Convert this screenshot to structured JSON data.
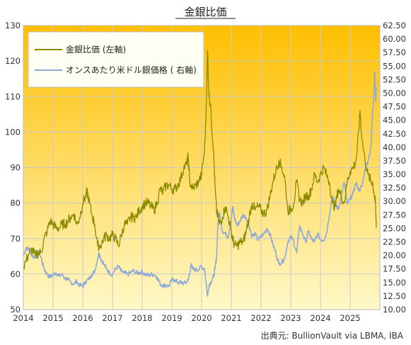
{
  "chart_data": {
    "type": "line",
    "title": "金銀比価",
    "source": "出典元: BullionVault via LBMA, IBA",
    "background_gradient": [
      "#ffbf00",
      "#fff8c8"
    ],
    "grid": true,
    "legend_position": "top-left",
    "x_range": [
      2014.0,
      2026.0
    ],
    "x_ticks": [
      "2014",
      "2015",
      "2016",
      "2017",
      "2018",
      "2019",
      "2020",
      "2021",
      "2022",
      "2023",
      "2024",
      "2025"
    ],
    "y_left": {
      "min": 50,
      "max": 130,
      "ticks": [
        "50",
        "60",
        "70",
        "80",
        "90",
        "100",
        "110",
        "120",
        "130"
      ]
    },
    "y_right": {
      "min": 10.0,
      "max": 62.5,
      "ticks": [
        "10.00",
        "12.50",
        "15.00",
        "17.50",
        "20.00",
        "22.50",
        "25.00",
        "27.50",
        "30.00",
        "32.50",
        "35.00",
        "37.50",
        "40.00",
        "42.50",
        "45.00",
        "47.50",
        "50.00",
        "52.50",
        "55.00",
        "57.50",
        "60.00",
        "62.50"
      ]
    },
    "series": [
      {
        "name": "金銀比価 (左軸)",
        "axis": "left",
        "color": "#8b8b00",
        "points": [
          [
            2014.0,
            62
          ],
          [
            2014.1,
            64
          ],
          [
            2014.2,
            66
          ],
          [
            2014.3,
            67
          ],
          [
            2014.4,
            65
          ],
          [
            2014.5,
            66
          ],
          [
            2014.6,
            66
          ],
          [
            2014.7,
            70
          ],
          [
            2014.8,
            72
          ],
          [
            2014.9,
            75
          ],
          [
            2015.0,
            74
          ],
          [
            2015.1,
            73
          ],
          [
            2015.2,
            73
          ],
          [
            2015.3,
            74
          ],
          [
            2015.4,
            74
          ],
          [
            2015.5,
            75
          ],
          [
            2015.6,
            76
          ],
          [
            2015.7,
            77
          ],
          [
            2015.8,
            74
          ],
          [
            2015.9,
            76
          ],
          [
            2016.0,
            80
          ],
          [
            2016.1,
            82
          ],
          [
            2016.15,
            83
          ],
          [
            2016.2,
            81
          ],
          [
            2016.3,
            77
          ],
          [
            2016.4,
            74
          ],
          [
            2016.5,
            68
          ],
          [
            2016.6,
            68
          ],
          [
            2016.7,
            70
          ],
          [
            2016.8,
            71
          ],
          [
            2016.9,
            70
          ],
          [
            2017.0,
            71
          ],
          [
            2017.1,
            70
          ],
          [
            2017.2,
            68
          ],
          [
            2017.3,
            71
          ],
          [
            2017.4,
            74
          ],
          [
            2017.5,
            74
          ],
          [
            2017.6,
            76
          ],
          [
            2017.7,
            76
          ],
          [
            2017.8,
            76
          ],
          [
            2017.9,
            78
          ],
          [
            2018.0,
            79
          ],
          [
            2018.1,
            80
          ],
          [
            2018.2,
            80
          ],
          [
            2018.3,
            79
          ],
          [
            2018.4,
            78
          ],
          [
            2018.5,
            80
          ],
          [
            2018.6,
            84
          ],
          [
            2018.7,
            83
          ],
          [
            2018.8,
            85
          ],
          [
            2018.9,
            85
          ],
          [
            2019.0,
            84
          ],
          [
            2019.1,
            84
          ],
          [
            2019.2,
            85
          ],
          [
            2019.3,
            87
          ],
          [
            2019.4,
            90
          ],
          [
            2019.5,
            91
          ],
          [
            2019.55,
            93
          ],
          [
            2019.6,
            86
          ],
          [
            2019.7,
            84
          ],
          [
            2019.8,
            85
          ],
          [
            2019.9,
            86
          ],
          [
            2020.0,
            88
          ],
          [
            2020.1,
            95
          ],
          [
            2020.15,
            105
          ],
          [
            2020.2,
            123
          ],
          [
            2020.25,
            110
          ],
          [
            2020.3,
            108
          ],
          [
            2020.35,
            100
          ],
          [
            2020.4,
            95
          ],
          [
            2020.45,
            85
          ],
          [
            2020.5,
            78
          ],
          [
            2020.55,
            76
          ],
          [
            2020.6,
            74
          ],
          [
            2020.7,
            76
          ],
          [
            2020.8,
            79
          ],
          [
            2020.9,
            76
          ],
          [
            2021.0,
            72
          ],
          [
            2021.05,
            70
          ],
          [
            2021.1,
            68
          ],
          [
            2021.2,
            68
          ],
          [
            2021.3,
            69
          ],
          [
            2021.4,
            69
          ],
          [
            2021.5,
            72
          ],
          [
            2021.6,
            76
          ],
          [
            2021.7,
            80
          ],
          [
            2021.8,
            78
          ],
          [
            2021.9,
            79
          ],
          [
            2022.0,
            78
          ],
          [
            2022.1,
            77
          ],
          [
            2022.2,
            78
          ],
          [
            2022.3,
            82
          ],
          [
            2022.4,
            86
          ],
          [
            2022.5,
            89
          ],
          [
            2022.6,
            92
          ],
          [
            2022.7,
            90
          ],
          [
            2022.8,
            87
          ],
          [
            2022.9,
            78
          ],
          [
            2023.0,
            78
          ],
          [
            2023.1,
            80
          ],
          [
            2023.2,
            86
          ],
          [
            2023.3,
            81
          ],
          [
            2023.4,
            80
          ],
          [
            2023.5,
            82
          ],
          [
            2023.6,
            82
          ],
          [
            2023.7,
            84
          ],
          [
            2023.8,
            88
          ],
          [
            2023.9,
            86
          ],
          [
            2024.0,
            88
          ],
          [
            2024.1,
            90
          ],
          [
            2024.2,
            88
          ],
          [
            2024.3,
            86
          ],
          [
            2024.4,
            80
          ],
          [
            2024.5,
            79
          ],
          [
            2024.6,
            84
          ],
          [
            2024.7,
            82
          ],
          [
            2024.8,
            80
          ],
          [
            2024.9,
            86
          ],
          [
            2025.0,
            89
          ],
          [
            2025.1,
            90
          ],
          [
            2025.2,
            92
          ],
          [
            2025.3,
            101
          ],
          [
            2025.33,
            106
          ],
          [
            2025.4,
            98
          ],
          [
            2025.5,
            92
          ],
          [
            2025.6,
            88
          ],
          [
            2025.7,
            86
          ],
          [
            2025.75,
            86
          ],
          [
            2025.8,
            83
          ],
          [
            2025.85,
            80
          ],
          [
            2025.88,
            73
          ]
        ]
      },
      {
        "name": "オンスあたり米ドル銀価格 ( 右軸)",
        "axis": "right",
        "color": "#8fa9d8",
        "points": [
          [
            2014.0,
            20.0
          ],
          [
            2014.1,
            21.5
          ],
          [
            2014.2,
            21.0
          ],
          [
            2014.3,
            20.0
          ],
          [
            2014.4,
            19.5
          ],
          [
            2014.5,
            21.0
          ],
          [
            2014.6,
            19.5
          ],
          [
            2014.7,
            17.5
          ],
          [
            2014.8,
            16.5
          ],
          [
            2014.9,
            16.0
          ],
          [
            2015.0,
            16.5
          ],
          [
            2015.1,
            16.8
          ],
          [
            2015.2,
            16.2
          ],
          [
            2015.3,
            16.5
          ],
          [
            2015.4,
            15.8
          ],
          [
            2015.5,
            15.5
          ],
          [
            2015.6,
            15.0
          ],
          [
            2015.7,
            14.8
          ],
          [
            2015.8,
            15.2
          ],
          [
            2015.9,
            14.5
          ],
          [
            2016.0,
            14.3
          ],
          [
            2016.1,
            15.2
          ],
          [
            2016.2,
            15.6
          ],
          [
            2016.3,
            16.5
          ],
          [
            2016.4,
            17.0
          ],
          [
            2016.5,
            19.5
          ],
          [
            2016.55,
            20.5
          ],
          [
            2016.6,
            19.5
          ],
          [
            2016.7,
            18.5
          ],
          [
            2016.8,
            17.5
          ],
          [
            2016.9,
            16.8
          ],
          [
            2017.0,
            16.5
          ],
          [
            2017.1,
            17.5
          ],
          [
            2017.2,
            18.0
          ],
          [
            2017.3,
            17.0
          ],
          [
            2017.4,
            16.8
          ],
          [
            2017.5,
            16.5
          ],
          [
            2017.6,
            16.8
          ],
          [
            2017.7,
            17.2
          ],
          [
            2017.8,
            16.8
          ],
          [
            2017.9,
            16.8
          ],
          [
            2018.0,
            17.0
          ],
          [
            2018.1,
            16.5
          ],
          [
            2018.2,
            16.3
          ],
          [
            2018.3,
            16.5
          ],
          [
            2018.4,
            16.5
          ],
          [
            2018.5,
            16.0
          ],
          [
            2018.6,
            14.8
          ],
          [
            2018.7,
            14.5
          ],
          [
            2018.8,
            14.5
          ],
          [
            2018.9,
            14.3
          ],
          [
            2019.0,
            15.5
          ],
          [
            2019.1,
            15.5
          ],
          [
            2019.2,
            15.0
          ],
          [
            2019.3,
            15.0
          ],
          [
            2019.4,
            14.9
          ],
          [
            2019.5,
            15.0
          ],
          [
            2019.6,
            16.5
          ],
          [
            2019.65,
            18.5
          ],
          [
            2019.7,
            17.5
          ],
          [
            2019.8,
            17.3
          ],
          [
            2019.9,
            17.5
          ],
          [
            2020.0,
            18.0
          ],
          [
            2020.1,
            17.5
          ],
          [
            2020.2,
            12.5
          ],
          [
            2020.25,
            14.5
          ],
          [
            2020.3,
            15.0
          ],
          [
            2020.4,
            16.0
          ],
          [
            2020.45,
            17.5
          ],
          [
            2020.5,
            19.5
          ],
          [
            2020.55,
            26.0
          ],
          [
            2020.6,
            28.0
          ],
          [
            2020.7,
            24.5
          ],
          [
            2020.8,
            24.0
          ],
          [
            2020.9,
            23.5
          ],
          [
            2021.0,
            27.0
          ],
          [
            2021.05,
            29.0
          ],
          [
            2021.1,
            27.0
          ],
          [
            2021.2,
            25.5
          ],
          [
            2021.3,
            26.5
          ],
          [
            2021.4,
            27.5
          ],
          [
            2021.5,
            27.0
          ],
          [
            2021.6,
            25.5
          ],
          [
            2021.7,
            23.5
          ],
          [
            2021.8,
            24.0
          ],
          [
            2021.9,
            22.8
          ],
          [
            2022.0,
            23.5
          ],
          [
            2022.1,
            24.0
          ],
          [
            2022.2,
            25.0
          ],
          [
            2022.3,
            24.0
          ],
          [
            2022.4,
            22.0
          ],
          [
            2022.5,
            20.5
          ],
          [
            2022.6,
            18.5
          ],
          [
            2022.7,
            18.8
          ],
          [
            2022.8,
            19.5
          ],
          [
            2022.9,
            22.5
          ],
          [
            2023.0,
            23.5
          ],
          [
            2023.1,
            22.5
          ],
          [
            2023.2,
            20.5
          ],
          [
            2023.3,
            25.5
          ],
          [
            2023.4,
            24.0
          ],
          [
            2023.5,
            22.5
          ],
          [
            2023.6,
            24.5
          ],
          [
            2023.7,
            23.0
          ],
          [
            2023.8,
            22.5
          ],
          [
            2023.9,
            24.0
          ],
          [
            2024.0,
            23.0
          ],
          [
            2024.1,
            22.8
          ],
          [
            2024.2,
            24.0
          ],
          [
            2024.3,
            27.5
          ],
          [
            2024.4,
            31.0
          ],
          [
            2024.5,
            29.5
          ],
          [
            2024.6,
            28.5
          ],
          [
            2024.7,
            31.0
          ],
          [
            2024.8,
            33.5
          ],
          [
            2024.9,
            29.5
          ],
          [
            2025.0,
            30.5
          ],
          [
            2025.1,
            31.5
          ],
          [
            2025.2,
            33.5
          ],
          [
            2025.3,
            32.0
          ],
          [
            2025.4,
            32.8
          ],
          [
            2025.5,
            36.0
          ],
          [
            2025.6,
            37.5
          ],
          [
            2025.7,
            40.0
          ],
          [
            2025.75,
            46.0
          ],
          [
            2025.8,
            50.0
          ],
          [
            2025.83,
            54.0
          ],
          [
            2025.86,
            48.5
          ],
          [
            2025.88,
            51.0
          ]
        ]
      }
    ]
  }
}
